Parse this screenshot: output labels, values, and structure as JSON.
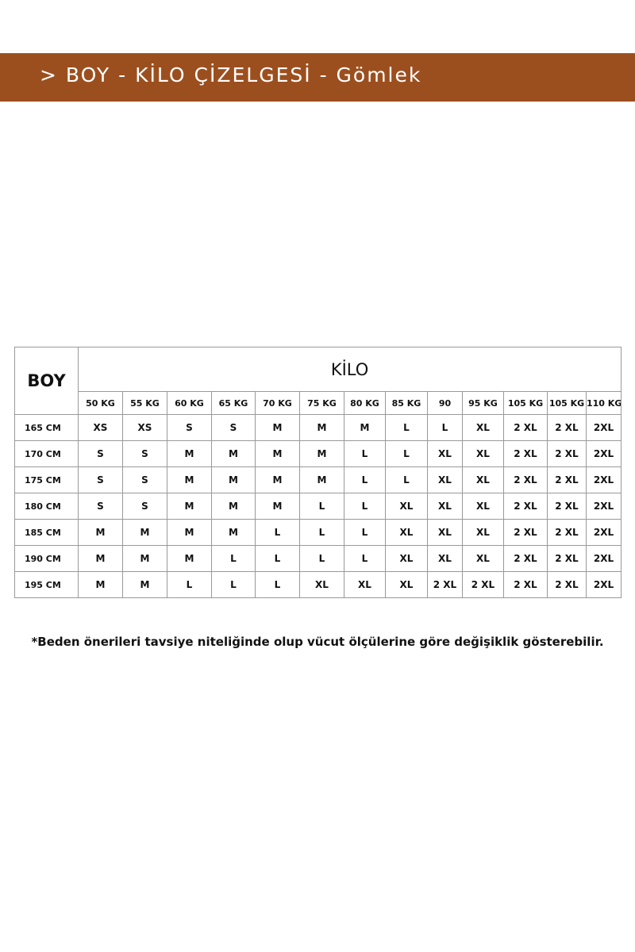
{
  "header": {
    "title": "> BOY - KİLO ÇİZELGESİ - Gömlek"
  },
  "table": {
    "corner": "BOY",
    "group_header": "KİLO",
    "columns": [
      "50 KG",
      "55 KG",
      "60 KG",
      "65 KG",
      "70 KG",
      "75 KG",
      "80 KG",
      "85 KG",
      "90",
      "95 KG",
      "105 KG",
      "105 KG",
      "110 KG"
    ],
    "rows": [
      {
        "label": "165 CM",
        "cells": [
          "XS",
          "XS",
          "S",
          "S",
          "M",
          "M",
          "M",
          "L",
          "L",
          "XL",
          "2 XL",
          "2 XL",
          "2XL"
        ]
      },
      {
        "label": "170 CM",
        "cells": [
          "S",
          "S",
          "M",
          "M",
          "M",
          "M",
          "L",
          "L",
          "XL",
          "XL",
          "2 XL",
          "2 XL",
          "2XL"
        ]
      },
      {
        "label": "175 CM",
        "cells": [
          "S",
          "S",
          "M",
          "M",
          "M",
          "M",
          "L",
          "L",
          "XL",
          "XL",
          "2 XL",
          "2 XL",
          "2XL"
        ]
      },
      {
        "label": "180 CM",
        "cells": [
          "S",
          "S",
          "M",
          "M",
          "M",
          "L",
          "L",
          "XL",
          "XL",
          "XL",
          "2 XL",
          "2 XL",
          "2XL"
        ]
      },
      {
        "label": "185 CM",
        "cells": [
          "M",
          "M",
          "M",
          "M",
          "L",
          "L",
          "L",
          "XL",
          "XL",
          "XL",
          "2 XL",
          "2 XL",
          "2XL"
        ]
      },
      {
        "label": "190 CM",
        "cells": [
          "M",
          "M",
          "M",
          "L",
          "L",
          "L",
          "L",
          "XL",
          "XL",
          "XL",
          "2 XL",
          "2 XL",
          "2XL"
        ]
      },
      {
        "label": "195 CM",
        "cells": [
          "M",
          "M",
          "L",
          "L",
          "L",
          "XL",
          "XL",
          "XL",
          "2 XL",
          "2 XL",
          "2 XL",
          "2 XL",
          "2XL"
        ]
      }
    ]
  },
  "footnote": "*Beden önerileri tavsiye niteliğinde olup vücut ölçülerine göre değişiklik gösterebilir."
}
